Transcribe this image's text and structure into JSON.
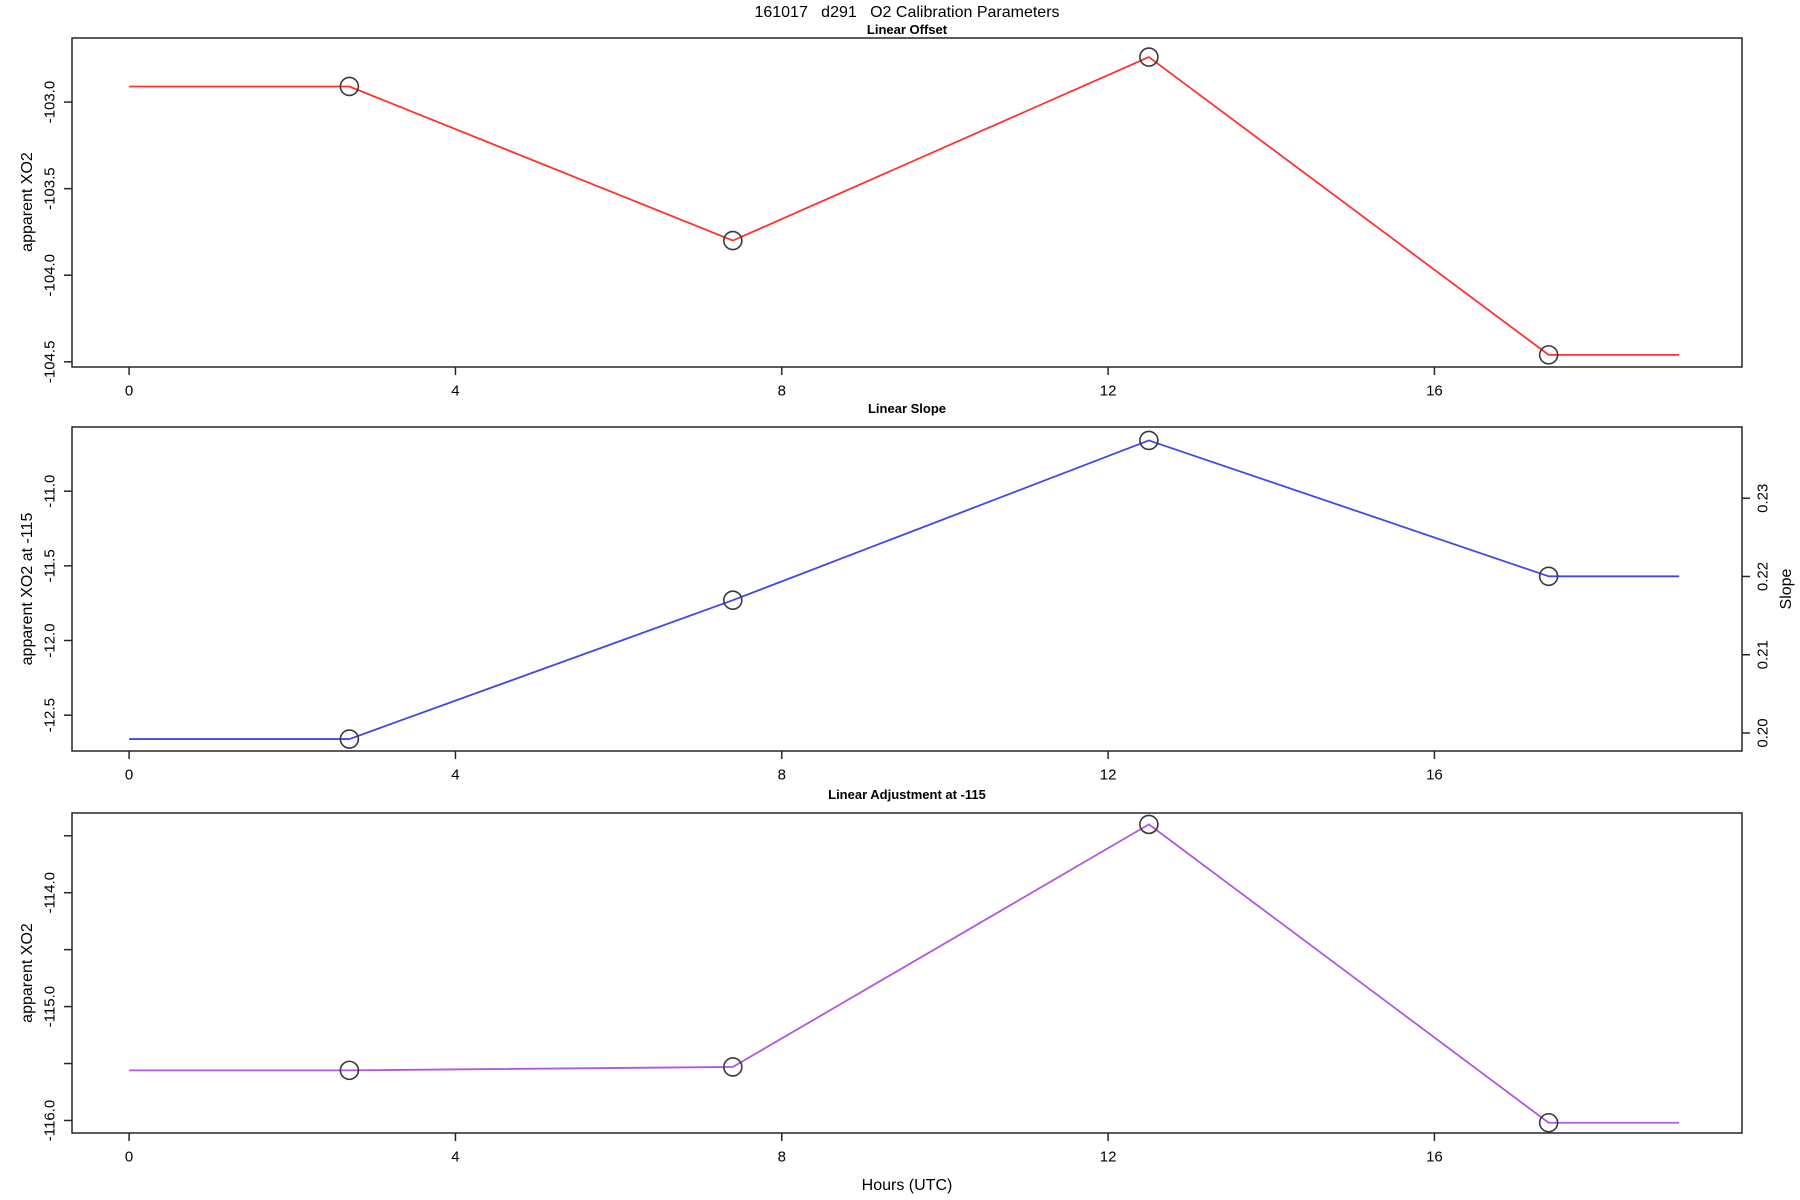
{
  "figure": {
    "title": "161017   d291   O2 Calibration Parameters",
    "xlabel": "Hours (UTC)",
    "colors": {
      "offset_line": "#ff3232",
      "slope_line": "#4646e8",
      "adjustment_line": "#b257e0",
      "marker_stroke": "#3a3a3a",
      "axis": "#262626"
    }
  },
  "chart_data": [
    {
      "type": "line",
      "title": "Linear Offset",
      "ylabel": "apparent XO2",
      "series_name": "linear-offset",
      "color_key": "offset_line",
      "x_line": [
        0,
        2.7,
        7.4,
        12.5,
        17.4,
        19.0
      ],
      "y_line": [
        -102.91,
        -102.91,
        -103.8,
        -102.74,
        -104.46,
        -104.46
      ],
      "points_x": [
        2.7,
        7.4,
        12.5,
        17.4
      ],
      "points_y": [
        -102.91,
        -103.8,
        -102.74,
        -104.46
      ],
      "xlim": [
        -0.7,
        19.77
      ],
      "ylim": [
        -104.53,
        -102.63
      ],
      "xticks": {
        "values": [
          0,
          4,
          8,
          12,
          16
        ],
        "labels": [
          "0",
          "4",
          "8",
          "12",
          "16"
        ]
      },
      "yticks": {
        "values": [
          -103.0,
          -103.5,
          -104.0,
          -104.5
        ],
        "labels": [
          "-103.0",
          "-103.5",
          "-104.0",
          "-104.5"
        ]
      },
      "grid": "off",
      "legend": "none"
    },
    {
      "type": "line",
      "title": "Linear Slope",
      "ylabel": "apparent XO2 at -115",
      "ylabel_right": "Slope",
      "series_name": "linear-slope",
      "color_key": "slope_line",
      "x_line": [
        0,
        2.7,
        7.4,
        12.5,
        17.4,
        19.0
      ],
      "y_line": [
        -12.66,
        -12.66,
        -11.73,
        -10.66,
        -11.57,
        -11.57
      ],
      "points_x": [
        2.7,
        7.4,
        12.5,
        17.4
      ],
      "points_y": [
        -12.66,
        -11.73,
        -10.66,
        -11.57
      ],
      "slope_values_right_axis": [
        0.199,
        0.217,
        0.237,
        0.22
      ],
      "xlim": [
        -0.7,
        19.77
      ],
      "ylim": [
        -12.74,
        -10.57
      ],
      "ylim_right": [
        0.1977,
        0.2391
      ],
      "xticks": {
        "values": [
          0,
          4,
          8,
          12,
          16
        ],
        "labels": [
          "0",
          "4",
          "8",
          "12",
          "16"
        ]
      },
      "yticks": {
        "values": [
          -11.0,
          -11.5,
          -12.0,
          -12.5
        ],
        "labels": [
          "-11.0",
          "-11.5",
          "-12.0",
          "-12.5"
        ]
      },
      "yticks_right": {
        "values": [
          0.2,
          0.21,
          0.22,
          0.23
        ],
        "labels": [
          "0.20",
          "0.21",
          "0.22",
          "0.23"
        ]
      },
      "grid": "off",
      "legend": "none"
    },
    {
      "type": "line",
      "title": "Linear Adjustment at -115",
      "ylabel": "apparent XO2",
      "series_name": "linear-adjustment",
      "color_key": "adjustment_line",
      "x_line": [
        0,
        2.7,
        7.4,
        12.5,
        17.4,
        19.0
      ],
      "y_line": [
        -115.56,
        -115.56,
        -115.53,
        -113.4,
        -116.02,
        -116.02
      ],
      "points_x": [
        2.7,
        7.4,
        12.5,
        17.4
      ],
      "points_y": [
        -115.56,
        -115.53,
        -113.4,
        -116.02
      ],
      "xlim": [
        -0.7,
        19.77
      ],
      "ylim": [
        -116.11,
        -113.3
      ],
      "xticks": {
        "values": [
          0,
          4,
          8,
          12,
          16
        ],
        "labels": [
          "0",
          "4",
          "8",
          "12",
          "16"
        ]
      },
      "yticks": {
        "values": [
          -114.0,
          -115.0,
          -116.0
        ],
        "labels": [
          "-114.0",
          "-115.0",
          "-116.0"
        ]
      },
      "yticks_minor": [
        -113.5,
        -114.5,
        -115.5
      ],
      "grid": "off",
      "legend": "none"
    }
  ]
}
